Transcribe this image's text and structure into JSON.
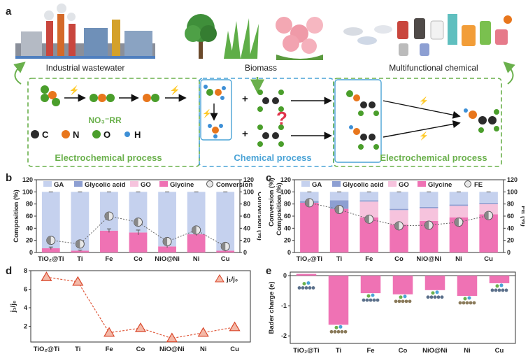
{
  "panels": {
    "a": "a",
    "b": "b",
    "c": "c",
    "d": "d",
    "e": "e"
  },
  "scheme": {
    "industrial_label": "Industrial wastewater",
    "biomass_label": "Biomass",
    "chemical_label": "Multifunctional chemical",
    "nitrate_label": "NO₃⁻RR",
    "atoms": [
      {
        "symbol": "C",
        "color": "#2b2b2b"
      },
      {
        "symbol": "N",
        "color": "#e8761c"
      },
      {
        "symbol": "O",
        "color": "#4a9e2b"
      },
      {
        "symbol": "H",
        "color": "#3d8fd6"
      }
    ],
    "process1": "Electrochemical process",
    "process2": "Chemical process",
    "process3": "Electrochemical process",
    "colors": {
      "electrochem": "#6ab04c",
      "chemical": "#4aa3d6",
      "bolt": "#f29d38",
      "question": "#e0344b"
    }
  },
  "chart_data": [
    {
      "id": "b",
      "type": "bar",
      "categories": [
        "TiO₂@Ti",
        "Ti",
        "Fe",
        "Co",
        "NiO@Ni",
        "Ni",
        "Cu"
      ],
      "ylabel": "Composition (%)",
      "ylabel2": "Conversion (%)",
      "ylim": [
        0,
        120
      ],
      "y2lim": [
        0,
        120
      ],
      "ticks": [
        0,
        20,
        40,
        60,
        80,
        100,
        120
      ],
      "legend": [
        "GA",
        "Glycolic acid",
        "GO",
        "Glycine",
        "Conversion"
      ],
      "stack_series": [
        {
          "name": "Glycine",
          "color": "#ef72b4",
          "values": [
            7,
            3,
            36,
            33,
            10,
            30,
            3
          ]
        },
        {
          "name": "GO",
          "color": "#f6c3dd",
          "values": [
            0,
            0,
            0,
            0,
            0,
            0,
            0
          ]
        },
        {
          "name": "Glycolic acid",
          "color": "#8d9fd2",
          "values": [
            0,
            0,
            0,
            0,
            0,
            0,
            0
          ]
        },
        {
          "name": "GA",
          "color": "#c5d1ee",
          "values": [
            93,
            97,
            64,
            67,
            90,
            70,
            97
          ]
        }
      ],
      "glycine_err": [
        2,
        1,
        3,
        4,
        2,
        2,
        1
      ],
      "line": {
        "name": "Conversion",
        "values": [
          20,
          14,
          60,
          50,
          18,
          37,
          10
        ],
        "err": [
          3,
          2,
          3,
          3,
          2,
          2,
          2
        ]
      }
    },
    {
      "id": "c",
      "type": "bar",
      "categories": [
        "TiO₂@Ti",
        "Ti",
        "Fe",
        "Co",
        "NiO@Ni",
        "Ni",
        "Cu"
      ],
      "ylabel": "Conversion (%)",
      "ylabel_b": "Composition (%)",
      "ylabel2": "FE (%)",
      "ylim": [
        0,
        120
      ],
      "y2lim": [
        0,
        120
      ],
      "ticks": [
        0,
        20,
        40,
        60,
        80,
        100,
        120
      ],
      "legend": [
        "GA",
        "Glycolic acid",
        "GO",
        "Glycine",
        "FE"
      ],
      "stack_series": [
        {
          "name": "Glycine",
          "color": "#ef72b4",
          "values": [
            82,
            72,
            58,
            46,
            52,
            58,
            63
          ]
        },
        {
          "name": "GO",
          "color": "#f6c3dd",
          "values": [
            0,
            0,
            26,
            24,
            21,
            19,
            17
          ]
        },
        {
          "name": "Glycolic acid",
          "color": "#8d9fd2",
          "values": [
            3,
            14,
            2,
            2,
            2,
            2,
            2
          ]
        },
        {
          "name": "GA",
          "color": "#c5d1ee",
          "values": [
            15,
            14,
            14,
            28,
            25,
            21,
            18
          ]
        }
      ],
      "line": {
        "name": "FE",
        "values": [
          82,
          71,
          55,
          44,
          45,
          50,
          61
        ],
        "err": [
          3,
          3,
          2,
          2,
          2,
          3,
          3
        ]
      }
    },
    {
      "id": "d",
      "type": "line",
      "categories": [
        "TiO₂@Ti",
        "Ti",
        "Fe",
        "Co",
        "NiO@Ni",
        "Ni",
        "Cu"
      ],
      "ylabel": "j₁/j₀",
      "ylim": [
        0.3,
        8
      ],
      "ticks": [
        2,
        4,
        6,
        8
      ],
      "series": [
        {
          "name": "j₁/j₀",
          "values": [
            7.3,
            6.8,
            1.3,
            1.8,
            0.7,
            1.3,
            1.9
          ]
        }
      ]
    },
    {
      "id": "e",
      "type": "bar",
      "categories": [
        "TiO₂@Ti",
        "Ti",
        "Fe",
        "Co",
        "NiO@Ni",
        "Ni",
        "Cu"
      ],
      "ylabel": "Bader charge (e)",
      "ylim": [
        -2.25,
        0.12
      ],
      "ticks": [
        0,
        -1,
        -2
      ],
      "values": [
        0.06,
        -1.63,
        -0.58,
        -0.62,
        -0.48,
        -0.67,
        -0.25
      ],
      "color": "#ef72b4"
    }
  ]
}
